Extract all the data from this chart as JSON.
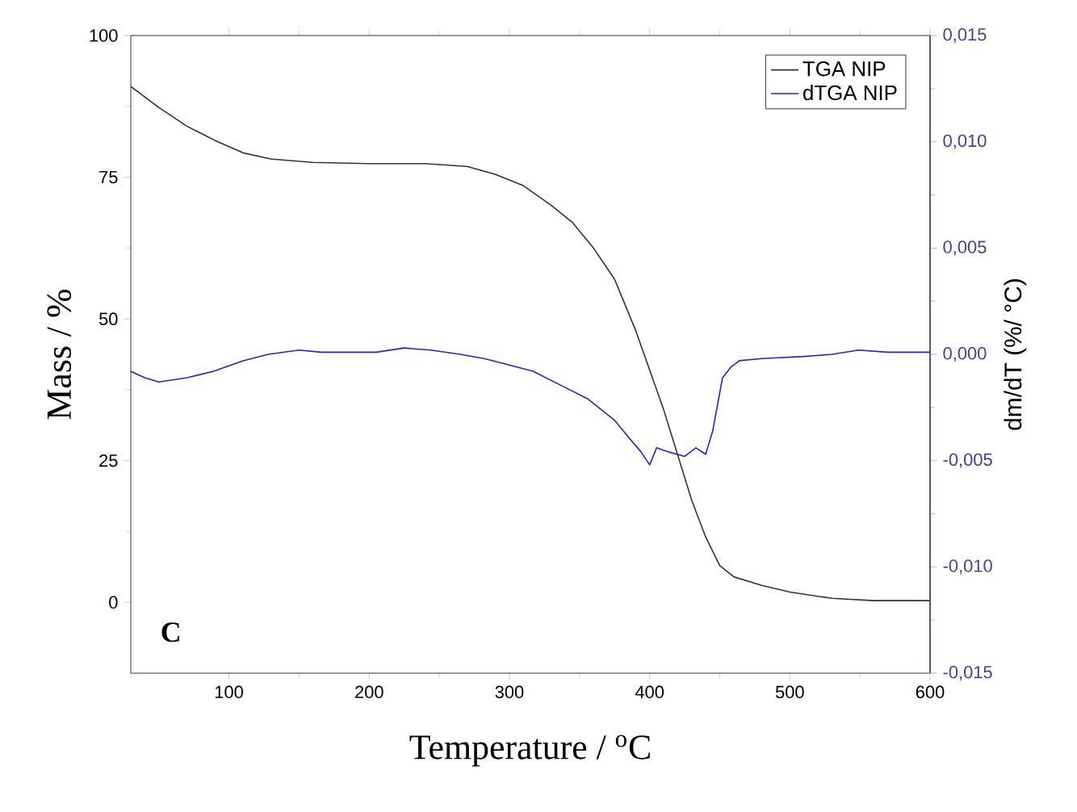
{
  "chart_data": {
    "type": "line",
    "xlabel": "Temperature / $^{o}$C",
    "ylabel": "Mass / %",
    "y2label": "dm/dT (%/ °C)",
    "annotations": [
      "C"
    ],
    "xlim": [
      30,
      600
    ],
    "xticks": [
      100,
      200,
      300,
      400,
      500,
      600
    ],
    "ylim": [
      -12.5,
      100
    ],
    "yticks": [
      0,
      25,
      50,
      75,
      100
    ],
    "y2lim": [
      -0.015,
      0.015
    ],
    "y2ticks": [
      {
        "value": -0.015,
        "label": "-0,015"
      },
      {
        "value": -0.01,
        "label": "-0,010"
      },
      {
        "value": -0.005,
        "label": "-0,005"
      },
      {
        "value": 0,
        "label": "0,000"
      },
      {
        "value": 0.005,
        "label": "0,005"
      },
      {
        "value": 0.01,
        "label": "0,010"
      },
      {
        "value": 0.015,
        "label": "0,015"
      }
    ],
    "legend": "top right",
    "series": [
      {
        "name": "TGA NIP",
        "color": "#333333",
        "axis": "y",
        "x": [
          30,
          50,
          70,
          90,
          110,
          130,
          160,
          200,
          240,
          270,
          290,
          310,
          330,
          345,
          360,
          375,
          390,
          400,
          410,
          420,
          430,
          440,
          450,
          460,
          480,
          500,
          530,
          560,
          600
        ],
        "values": [
          91,
          87.3,
          84,
          81.5,
          79.3,
          78.2,
          77.6,
          77.4,
          77.4,
          76.9,
          75.5,
          73.5,
          70,
          67,
          62.5,
          57,
          48,
          41,
          34,
          26,
          18,
          11.5,
          6.5,
          4.5,
          3,
          1.8,
          0.7,
          0.3,
          0.3
        ]
      },
      {
        "name": "dTGA NIP",
        "color": "#2222dd",
        "axis": "y2",
        "x": [
          30,
          40,
          50,
          70,
          89,
          110,
          128,
          150,
          166,
          185,
          205,
          225,
          244,
          265,
          282,
          300,
          317,
          335,
          356,
          375,
          385,
          394,
          400,
          405,
          414,
          425,
          433,
          440,
          445,
          452,
          458,
          464,
          480,
          510,
          530,
          549,
          570,
          600
        ],
        "values": [
          -0.0008,
          -0.0011,
          -0.0013,
          -0.0011,
          -0.0008,
          -0.0003,
          0,
          0.0002,
          0.0001,
          0.0001,
          0.0001,
          0.0003,
          0.0002,
          0,
          -0.0002,
          -0.0005,
          -0.0008,
          -0.0014,
          -0.0021,
          -0.0031,
          -0.0039,
          -0.0046,
          -0.0052,
          -0.0044,
          -0.0046,
          -0.0048,
          -0.0044,
          -0.0047,
          -0.0036,
          -0.0011,
          -0.0006,
          -0.0003,
          -0.0002,
          -0.0001,
          0,
          0.0002,
          0.0001,
          0.0001
        ]
      }
    ]
  }
}
